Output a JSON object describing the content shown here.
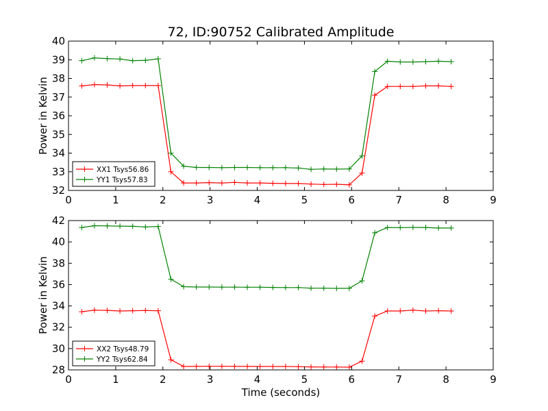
{
  "figure": {
    "title": "72, ID:90752 Calibrated Amplitude"
  },
  "chart_data": [
    {
      "type": "line",
      "title": "72, ID:90752 Calibrated Amplitude",
      "xlabel": "",
      "ylabel": "Power in Kelvin",
      "xlim": [
        0,
        9
      ],
      "ylim": [
        32,
        40
      ],
      "xticks": [
        0,
        1,
        2,
        3,
        4,
        5,
        6,
        7,
        8,
        9
      ],
      "yticks": [
        32,
        33,
        34,
        35,
        36,
        37,
        38,
        39,
        40
      ],
      "grid": false,
      "legend_position": "lower-left",
      "x": [
        0.28,
        0.55,
        0.82,
        1.09,
        1.36,
        1.63,
        1.9,
        2.17,
        2.44,
        2.71,
        2.98,
        3.25,
        3.52,
        3.79,
        4.06,
        4.33,
        4.6,
        4.87,
        5.14,
        5.41,
        5.68,
        5.95,
        6.22,
        6.49,
        6.76,
        7.03,
        7.3,
        7.57,
        7.84,
        8.11
      ],
      "series": [
        {
          "name": "XX1 Tsys56.86",
          "color": "#ff0000",
          "values": [
            37.6,
            37.67,
            37.65,
            37.6,
            37.62,
            37.62,
            37.62,
            33.0,
            32.4,
            32.4,
            32.42,
            32.4,
            32.43,
            32.4,
            32.4,
            32.38,
            32.37,
            32.37,
            32.34,
            32.32,
            32.33,
            32.3,
            32.93,
            37.1,
            37.57,
            37.57,
            37.57,
            37.6,
            37.6,
            37.57
          ]
        },
        {
          "name": "YY1 Tsys57.83",
          "color": "#008000",
          "values": [
            38.95,
            39.1,
            39.06,
            39.04,
            38.95,
            38.97,
            39.05,
            34.0,
            33.3,
            33.23,
            33.23,
            33.22,
            33.23,
            33.23,
            33.22,
            33.22,
            33.22,
            33.2,
            33.13,
            33.15,
            33.14,
            33.15,
            33.85,
            38.37,
            38.92,
            38.88,
            38.88,
            38.9,
            38.92,
            38.9
          ]
        }
      ]
    },
    {
      "type": "line",
      "title": "",
      "xlabel": "Time (seconds)",
      "ylabel": "Power in Kelvin",
      "xlim": [
        0,
        9
      ],
      "ylim": [
        28,
        42
      ],
      "xticks": [
        0,
        1,
        2,
        3,
        4,
        5,
        6,
        7,
        8,
        9
      ],
      "yticks": [
        28,
        30,
        32,
        34,
        36,
        38,
        40,
        42
      ],
      "grid": false,
      "legend_position": "lower-left",
      "x": [
        0.28,
        0.55,
        0.82,
        1.09,
        1.36,
        1.63,
        1.9,
        2.17,
        2.44,
        2.71,
        2.98,
        3.25,
        3.52,
        3.79,
        4.06,
        4.33,
        4.6,
        4.87,
        5.14,
        5.41,
        5.68,
        5.95,
        6.22,
        6.49,
        6.76,
        7.03,
        7.3,
        7.57,
        7.84,
        8.11
      ],
      "series": [
        {
          "name": "XX2 Tsys48.79",
          "color": "#ff0000",
          "values": [
            33.45,
            33.6,
            33.58,
            33.52,
            33.55,
            33.57,
            33.55,
            28.95,
            28.32,
            28.33,
            28.34,
            28.34,
            28.33,
            28.33,
            28.32,
            28.32,
            28.32,
            28.3,
            28.28,
            28.27,
            28.27,
            28.26,
            28.82,
            33.05,
            33.52,
            33.52,
            33.6,
            33.52,
            33.55,
            33.52
          ]
        },
        {
          "name": "YY2 Tsys62.84",
          "color": "#008000",
          "values": [
            41.35,
            41.52,
            41.5,
            41.48,
            41.46,
            41.4,
            41.45,
            36.5,
            35.8,
            35.77,
            35.77,
            35.76,
            35.76,
            35.75,
            35.75,
            35.73,
            35.72,
            35.72,
            35.66,
            35.66,
            35.64,
            35.65,
            36.35,
            40.85,
            41.35,
            41.34,
            41.36,
            41.35,
            41.3,
            41.3
          ]
        }
      ]
    }
  ]
}
